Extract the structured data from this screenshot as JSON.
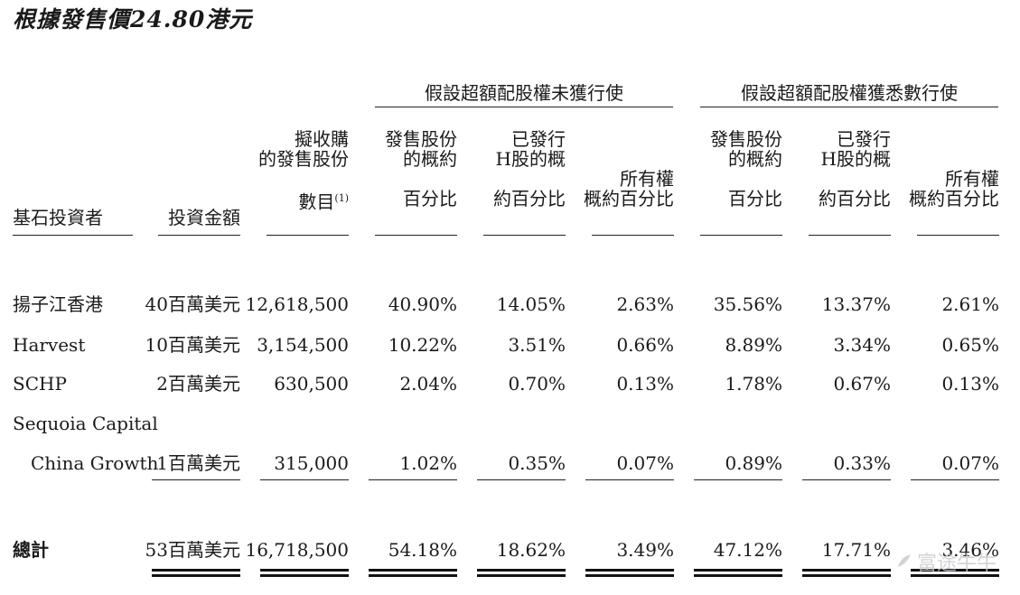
{
  "title": "根據發售價24.80港元",
  "group_headers": {
    "not_exercised": "假設超額配股權未獲行使",
    "fully_exercised": "假設超額配股權獲悉數行使"
  },
  "columns": {
    "investor": "基石投資者",
    "amount": "投資金額",
    "shares": [
      "擬收購",
      "的發售股份",
      "數目"
    ],
    "shares_note": "(1)",
    "ne_offer_pct": [
      "發售股份",
      "的概約",
      "百分比"
    ],
    "ne_h_pct": [
      "已發行",
      "H股的概",
      "約百分比"
    ],
    "ne_owner_pct": [
      "所有權",
      "概約百分比"
    ],
    "fe_offer_pct": [
      "發售股份",
      "的概約",
      "百分比"
    ],
    "fe_h_pct": [
      "已發行",
      "H股的概",
      "約百分比"
    ],
    "fe_owner_pct": [
      "所有權",
      "概約百分比"
    ]
  },
  "rows": [
    {
      "name": "揚子江香港",
      "amount": "40百萬美元",
      "shares": "12,618,500",
      "v1": "40.90%",
      "v2": "14.05%",
      "v3": "2.63%",
      "v4": "35.56%",
      "v5": "13.37%",
      "v6": "2.61%"
    },
    {
      "name": "Harvest",
      "amount": "10百萬美元",
      "shares": "3,154,500",
      "v1": "10.22%",
      "v2": "3.51%",
      "v3": "0.66%",
      "v4": "8.89%",
      "v5": "3.34%",
      "v6": "0.65%"
    },
    {
      "name": "SCHP",
      "amount": "2百萬美元",
      "shares": "630,500",
      "v1": "2.04%",
      "v2": "0.70%",
      "v3": "0.13%",
      "v4": "1.78%",
      "v5": "0.67%",
      "v6": "0.13%"
    },
    {
      "name": "Sequoia Capital",
      "name2": "China Growth",
      "amount": "1百萬美元",
      "shares": "315,000",
      "v1": "1.02%",
      "v2": "0.35%",
      "v3": "0.07%",
      "v4": "0.89%",
      "v5": "0.33%",
      "v6": "0.07%"
    }
  ],
  "total": {
    "name": "總計",
    "amount": "53百萬美元",
    "shares": "16,718,500",
    "v1": "54.18%",
    "v2": "18.62%",
    "v3": "3.49%",
    "v4": "47.12%",
    "v5": "17.71%",
    "v6": "3.46%"
  },
  "watermark": "富途牛牛"
}
